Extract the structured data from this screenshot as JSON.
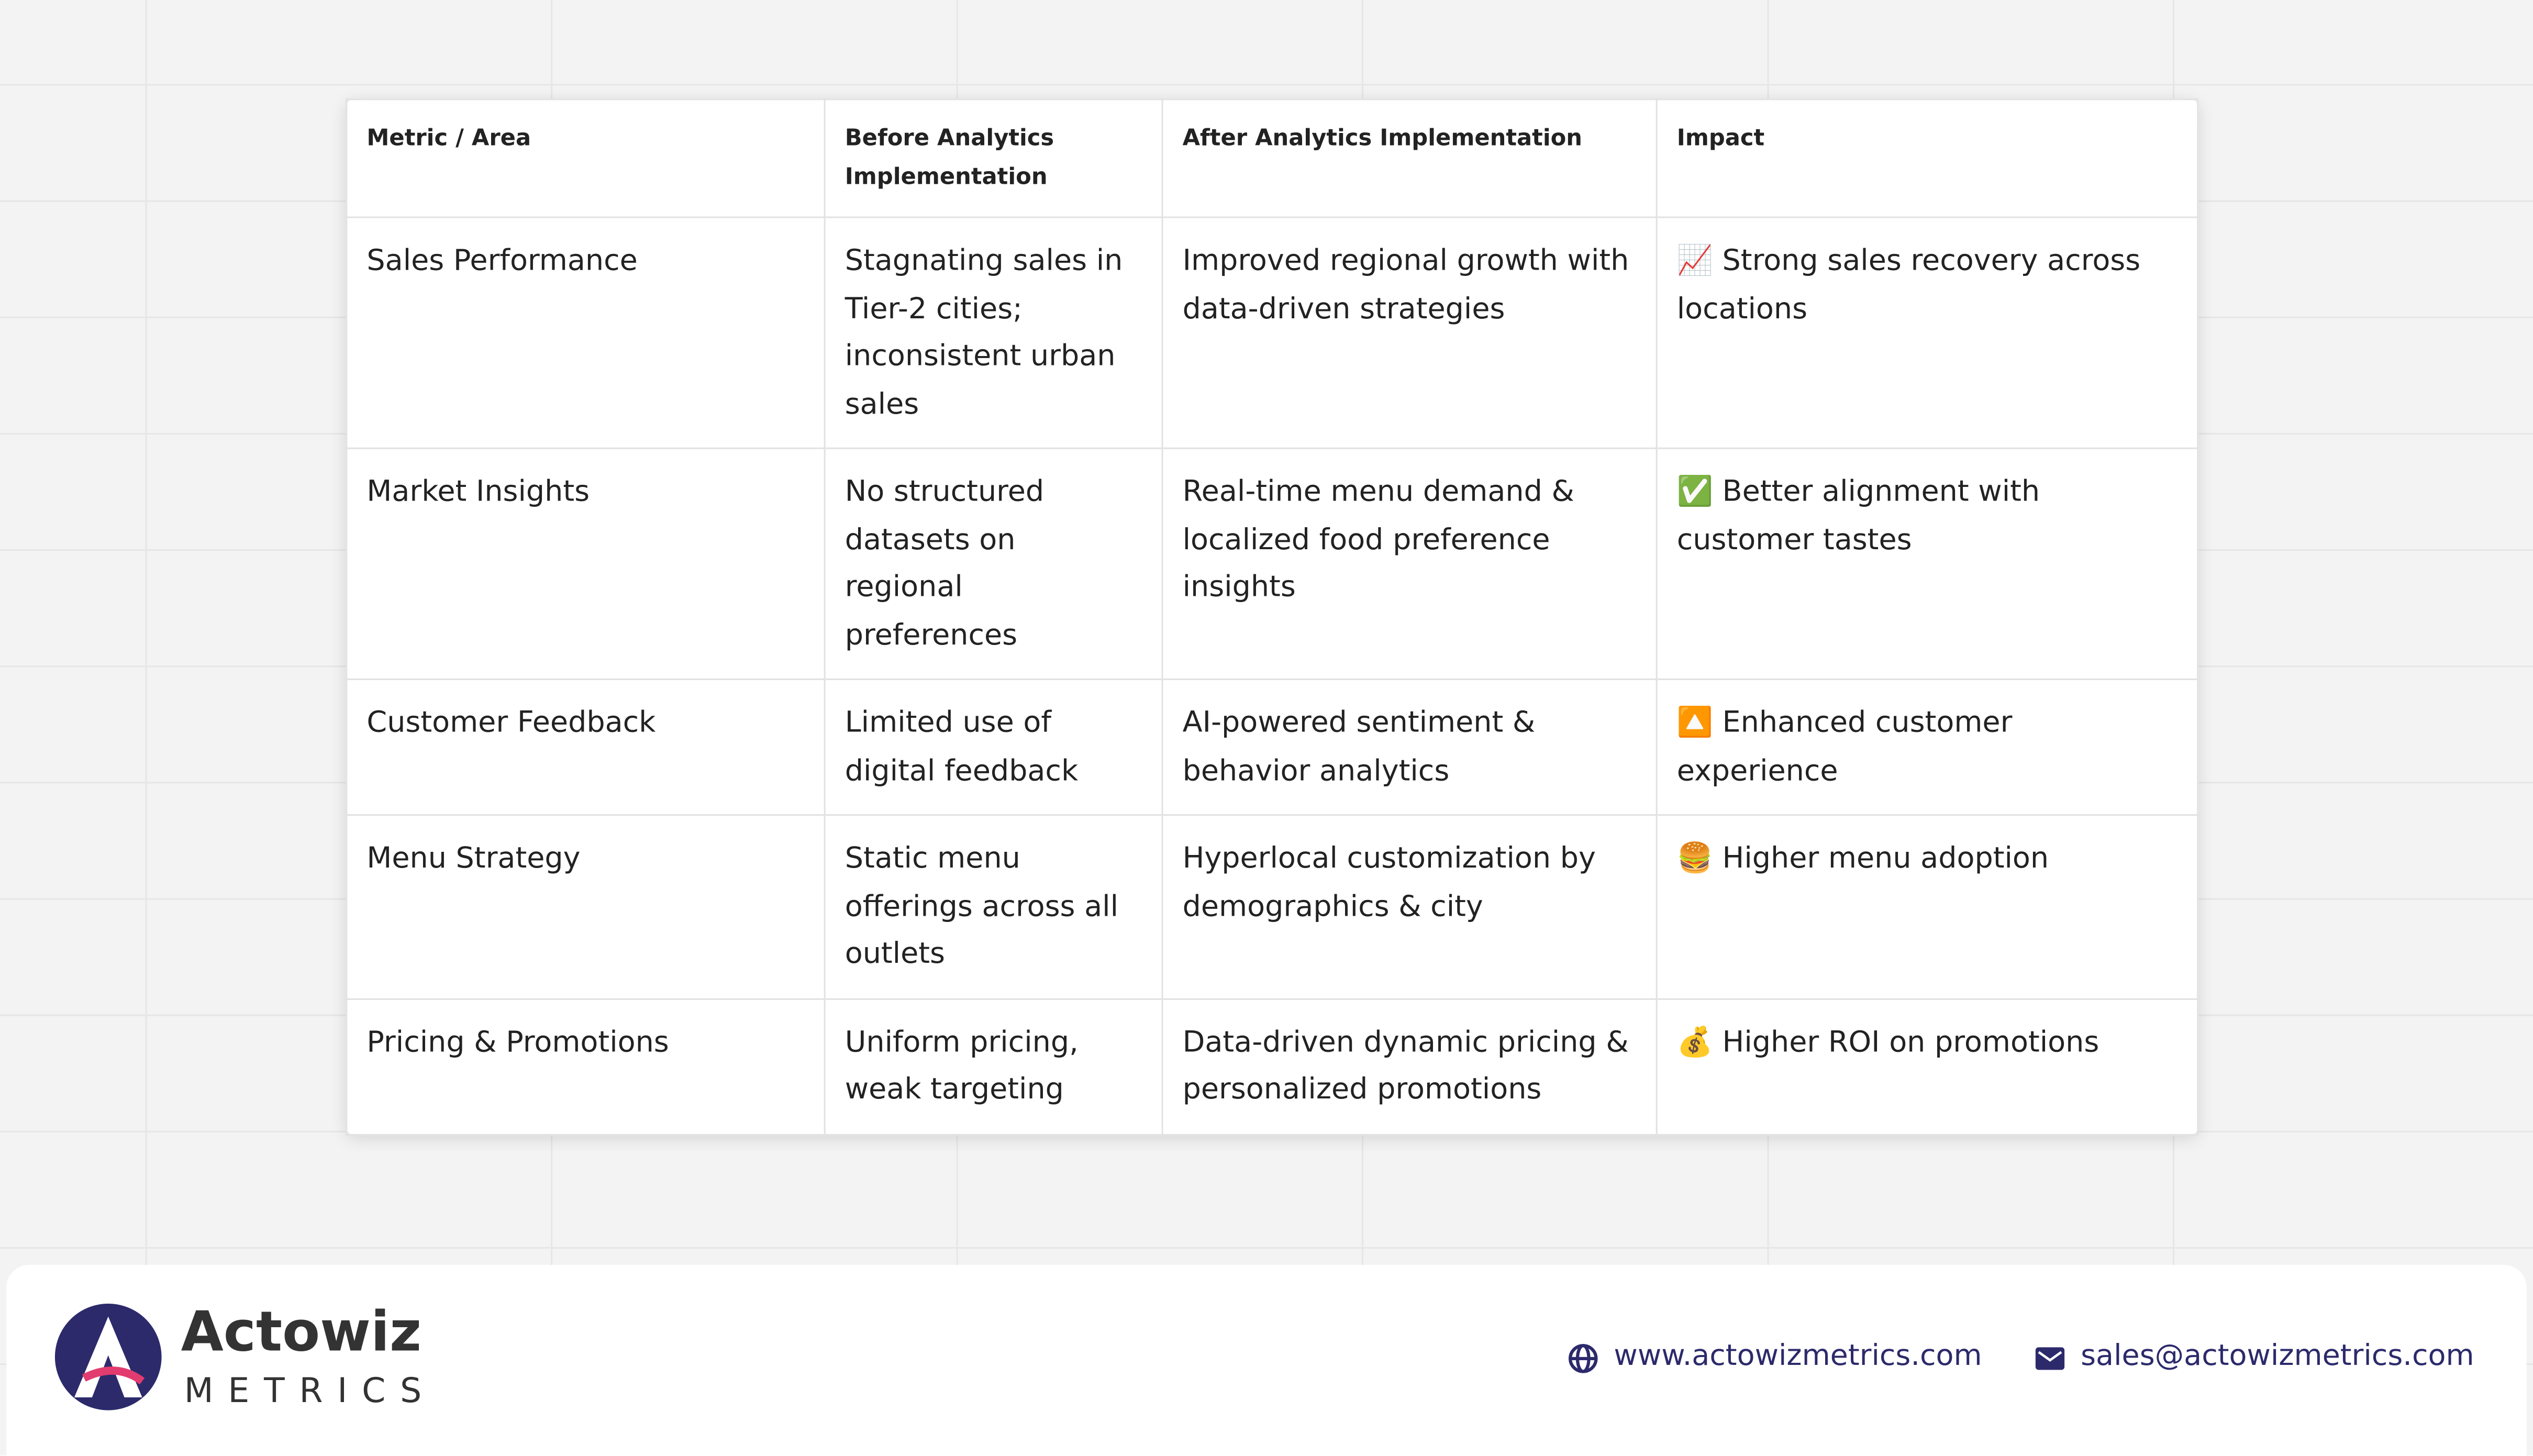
{
  "table": {
    "header": [
      "Metric / Area",
      "Before Analytics Implementation",
      "After Analytics Implementation",
      "Impact"
    ],
    "rows": [
      [
        "Sales Performance",
        "Stagnating sales in Tier-2 cities; inconsistent urban sales",
        "Improved regional growth with data-driven strategies",
        "📈 Strong sales recovery across locations"
      ],
      [
        "Market Insights",
        "No structured datasets on regional preferences",
        "Real-time menu demand & localized food preference insights",
        "✅ Better alignment with customer tastes"
      ],
      [
        "Customer Feedback",
        "Limited use of digital feedback",
        "AI-powered sentiment & behavior analytics",
        "🔼 Enhanced customer experience"
      ],
      [
        "Menu Strategy",
        "Static menu offerings across all outlets",
        "Hyperlocal customization by demographics & city",
        "🍔 Higher menu adoption"
      ],
      [
        "Pricing & Promotions",
        "Uniform pricing, weak targeting",
        "Data-driven dynamic pricing & personalized promotions",
        "💰 Higher ROI on promotions"
      ]
    ]
  },
  "footer": {
    "brand": "Actowiz",
    "sub": "METRICS",
    "website": "www.actowizmetrics.com",
    "email": "sales@actowizmetrics.com"
  }
}
